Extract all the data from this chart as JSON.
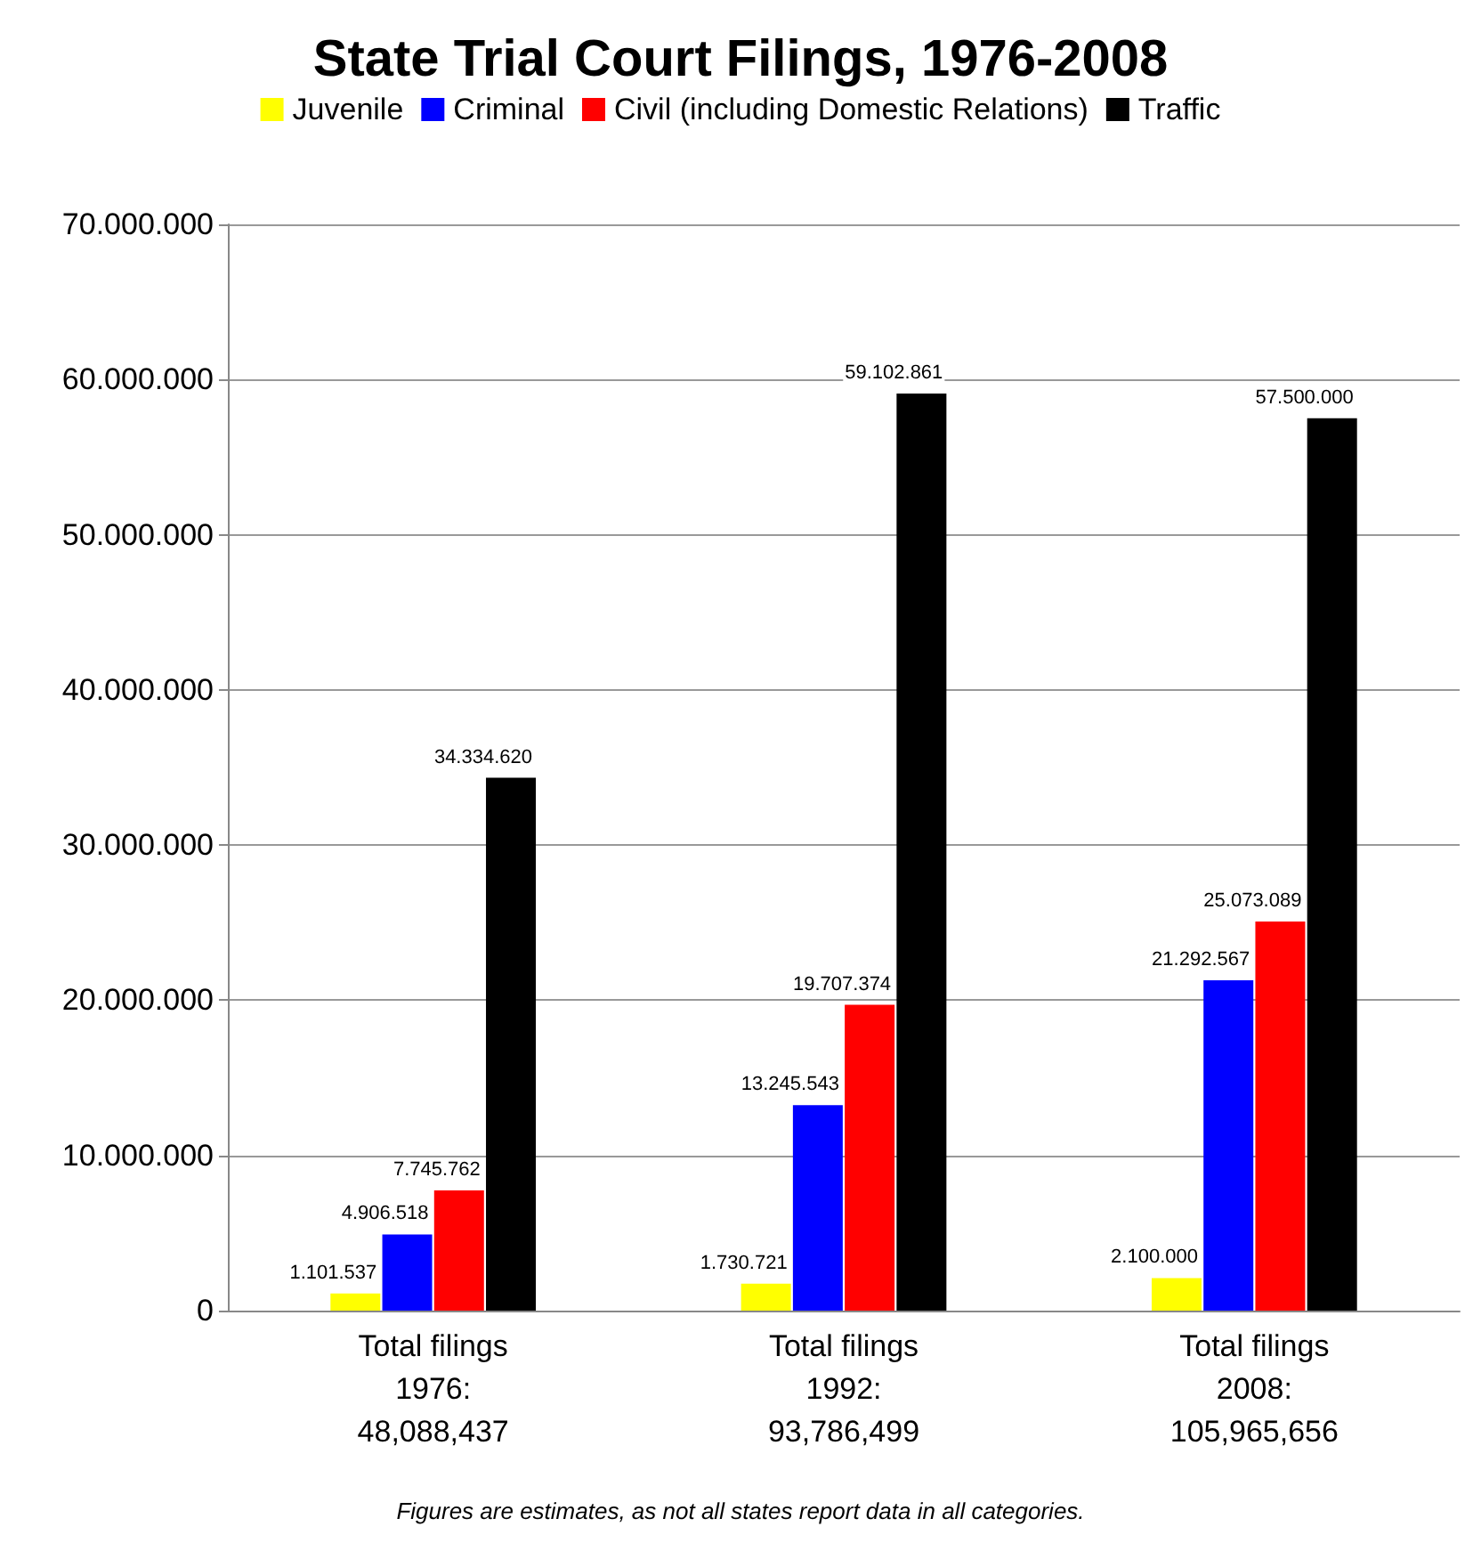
{
  "chart_data": {
    "type": "bar",
    "title": "State Trial Court Filings, 1976-2008",
    "categories": [
      "Total filings\n1976:\n48,088,437",
      "Total filings\n1992:\n93,786,499",
      "Total filings\n2008:\n105,965,656"
    ],
    "series": [
      {
        "name": "Juvenile",
        "color": "#ffff00",
        "values": [
          1101537,
          1730721,
          2100000
        ],
        "value_labels": [
          "1.101.537",
          "1.730.721",
          "2.100.000"
        ]
      },
      {
        "name": "Criminal",
        "color": "#0000ff",
        "values": [
          4906518,
          13245543,
          21292567
        ],
        "value_labels": [
          "4.906.518",
          "13.245.543",
          "21.292.567"
        ]
      },
      {
        "name": "Civil (including Domestic Relations)",
        "color": "#ff0000",
        "values": [
          7745762,
          19707374,
          25073089
        ],
        "value_labels": [
          "7.745.762",
          "19.707.374",
          "25.073.089"
        ]
      },
      {
        "name": "Traffic",
        "color": "#000000",
        "values": [
          34334620,
          59102861,
          57500000
        ],
        "value_labels": [
          "34.334.620",
          "59.102.861",
          "57.500.000"
        ]
      }
    ],
    "ylim": [
      0,
      70000000
    ],
    "yticks": [
      {
        "value": 0,
        "label": "0"
      },
      {
        "value": 10000000,
        "label": "10.000.000"
      },
      {
        "value": 20000000,
        "label": "20.000.000"
      },
      {
        "value": 30000000,
        "label": "30.000.000"
      },
      {
        "value": 40000000,
        "label": "40.000.000"
      },
      {
        "value": 50000000,
        "label": "50.000.000"
      },
      {
        "value": 60000000,
        "label": "60.000.000"
      },
      {
        "value": 70000000,
        "label": "70.000.000"
      }
    ],
    "grid": "y",
    "legend": "top",
    "annotations": [
      "Figures are estimates, as not all states report data in all categories."
    ]
  }
}
